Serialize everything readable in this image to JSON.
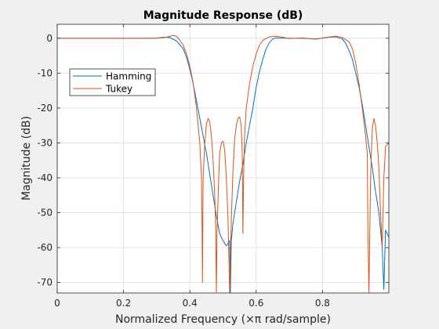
{
  "chart_data": {
    "type": "line",
    "title": "Magnitude Response (dB)",
    "xlabel": "Normalized Frequency (×π rad/sample)",
    "ylabel": "Magnitude (dB)",
    "xlim": [
      0,
      1
    ],
    "ylim": [
      -73,
      4
    ],
    "xticks": [
      "0",
      "0.2",
      "0.4",
      "0.6",
      "0.8"
    ],
    "yticks": [
      "0",
      "-10",
      "-20",
      "-30",
      "-40",
      "-50",
      "-60",
      "-70"
    ],
    "grid": true,
    "legend_position": "upper-left",
    "series": [
      {
        "name": "Hamming",
        "color": "#0072bd",
        "points": [
          [
            0,
            0
          ],
          [
            0.25,
            0
          ],
          [
            0.3,
            0.05
          ],
          [
            0.32,
            0.3
          ],
          [
            0.34,
            0.2
          ],
          [
            0.36,
            -0.8
          ],
          [
            0.38,
            -3
          ],
          [
            0.39,
            -5.5
          ],
          [
            0.4,
            -9
          ],
          [
            0.41,
            -13
          ],
          [
            0.42,
            -18
          ],
          [
            0.43,
            -23
          ],
          [
            0.44,
            -28
          ],
          [
            0.45,
            -33
          ],
          [
            0.46,
            -39
          ],
          [
            0.47,
            -45
          ],
          [
            0.48,
            -51
          ],
          [
            0.49,
            -56
          ],
          [
            0.5,
            -58
          ],
          [
            0.51,
            -59.5
          ],
          [
            0.52,
            -58
          ],
          [
            0.522,
            -73
          ],
          [
            0.525,
            -58
          ],
          [
            0.53,
            -53
          ],
          [
            0.54,
            -47
          ],
          [
            0.55,
            -41
          ],
          [
            0.56,
            -36
          ],
          [
            0.57,
            -30
          ],
          [
            0.58,
            -25
          ],
          [
            0.59,
            -20
          ],
          [
            0.6,
            -14
          ],
          [
            0.61,
            -9.5
          ],
          [
            0.62,
            -6
          ],
          [
            0.63,
            -3
          ],
          [
            0.64,
            -1.2
          ],
          [
            0.65,
            -0.2
          ],
          [
            0.66,
            0.1
          ],
          [
            0.7,
            0
          ],
          [
            0.74,
            0
          ],
          [
            0.78,
            -0.2
          ],
          [
            0.82,
            0.3
          ],
          [
            0.84,
            0.4
          ],
          [
            0.86,
            -0.2
          ],
          [
            0.87,
            -1.5
          ],
          [
            0.88,
            -3.5
          ],
          [
            0.89,
            -6
          ],
          [
            0.9,
            -10
          ],
          [
            0.91,
            -14
          ],
          [
            0.92,
            -19
          ],
          [
            0.93,
            -25
          ],
          [
            0.94,
            -31
          ],
          [
            0.95,
            -37
          ],
          [
            0.96,
            -44
          ],
          [
            0.97,
            -50
          ],
          [
            0.98,
            -60
          ],
          [
            0.985,
            -72
          ],
          [
            0.99,
            -55
          ],
          [
            1.0,
            -57
          ]
        ]
      },
      {
        "name": "Tukey",
        "color": "#d95319",
        "points": [
          [
            0,
            0
          ],
          [
            0.25,
            0
          ],
          [
            0.3,
            0
          ],
          [
            0.33,
            0.3
          ],
          [
            0.35,
            0.8
          ],
          [
            0.36,
            0.5
          ],
          [
            0.37,
            -0.6
          ],
          [
            0.38,
            -2
          ],
          [
            0.39,
            -4.5
          ],
          [
            0.4,
            -8
          ],
          [
            0.41,
            -13
          ],
          [
            0.42,
            -20
          ],
          [
            0.43,
            -30
          ],
          [
            0.435,
            -40
          ],
          [
            0.437,
            -55
          ],
          [
            0.438,
            -70
          ],
          [
            0.44,
            -40
          ],
          [
            0.445,
            -30
          ],
          [
            0.45,
            -24.5
          ],
          [
            0.455,
            -23
          ],
          [
            0.46,
            -24
          ],
          [
            0.465,
            -28
          ],
          [
            0.47,
            -35
          ],
          [
            0.475,
            -45
          ],
          [
            0.478,
            -55
          ],
          [
            0.48,
            -73
          ],
          [
            0.482,
            -55
          ],
          [
            0.487,
            -40
          ],
          [
            0.49,
            -33
          ],
          [
            0.495,
            -30
          ],
          [
            0.5,
            -29.5
          ],
          [
            0.505,
            -32
          ],
          [
            0.51,
            -40
          ],
          [
            0.515,
            -52
          ],
          [
            0.52,
            -73
          ],
          [
            0.525,
            -52
          ],
          [
            0.53,
            -38
          ],
          [
            0.535,
            -29
          ],
          [
            0.54,
            -25
          ],
          [
            0.545,
            -23
          ],
          [
            0.55,
            -22.5
          ],
          [
            0.555,
            -25
          ],
          [
            0.558,
            -33
          ],
          [
            0.56,
            -56
          ],
          [
            0.562,
            -40
          ],
          [
            0.565,
            -28
          ],
          [
            0.57,
            -20
          ],
          [
            0.58,
            -13
          ],
          [
            0.59,
            -8
          ],
          [
            0.6,
            -4.5
          ],
          [
            0.61,
            -2
          ],
          [
            0.62,
            -0.6
          ],
          [
            0.64,
            0.4
          ],
          [
            0.66,
            0.6
          ],
          [
            0.68,
            0.3
          ],
          [
            0.7,
            -0.1
          ],
          [
            0.74,
            0.1
          ],
          [
            0.78,
            -0.3
          ],
          [
            0.8,
            0.1
          ],
          [
            0.84,
            0.6
          ],
          [
            0.86,
            0.2
          ],
          [
            0.88,
            -1
          ],
          [
            0.89,
            -3
          ],
          [
            0.9,
            -7
          ],
          [
            0.91,
            -13
          ],
          [
            0.92,
            -20
          ],
          [
            0.93,
            -28
          ],
          [
            0.935,
            -33
          ],
          [
            0.937,
            -55
          ],
          [
            0.94,
            -73
          ],
          [
            0.945,
            -40
          ],
          [
            0.95,
            -26
          ],
          [
            0.955,
            -23
          ],
          [
            0.96,
            -25
          ],
          [
            0.965,
            -30
          ],
          [
            0.97,
            -37
          ],
          [
            0.975,
            -50
          ],
          [
            0.98,
            -60
          ],
          [
            0.985,
            -40
          ],
          [
            0.99,
            -31
          ],
          [
            1.0,
            -30
          ]
        ]
      }
    ]
  }
}
